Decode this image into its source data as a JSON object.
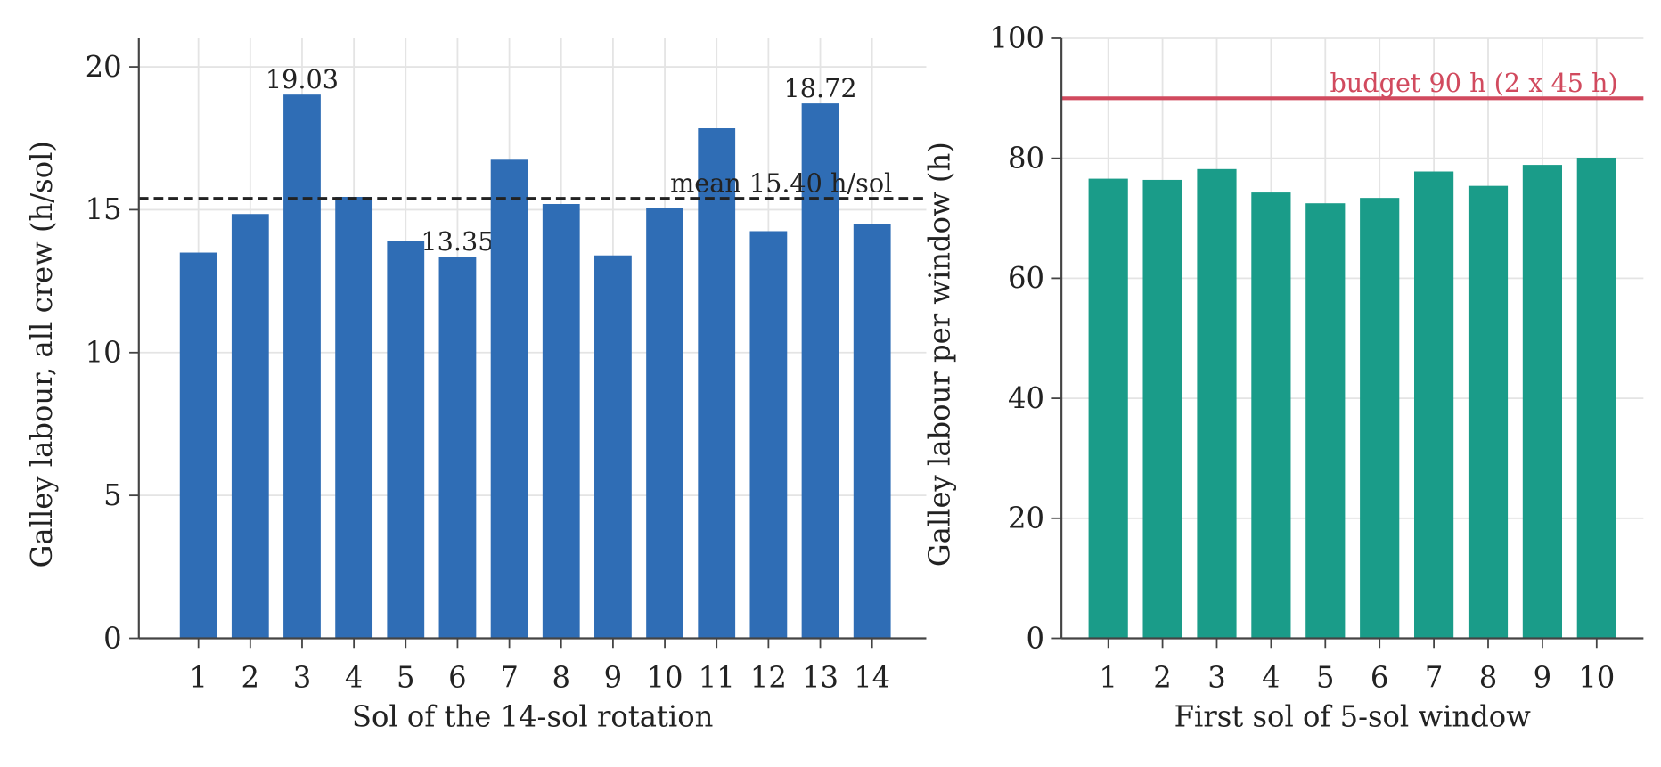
{
  "chart_data": [
    {
      "type": "bar",
      "x_label": "Sol of the 14-sol rotation",
      "y_label": "Galley labour, all crew (h/sol)",
      "categories": [
        "1",
        "2",
        "3",
        "4",
        "5",
        "6",
        "7",
        "8",
        "9",
        "10",
        "11",
        "12",
        "13",
        "14"
      ],
      "values": [
        13.5,
        14.85,
        19.03,
        15.45,
        13.9,
        13.35,
        16.75,
        15.2,
        13.4,
        15.05,
        17.85,
        14.25,
        18.72,
        14.5
      ],
      "value_labels": [
        null,
        null,
        "19.03",
        null,
        null,
        "13.35",
        null,
        null,
        null,
        null,
        null,
        null,
        "18.72",
        null
      ],
      "color": "#2f6db5",
      "ylim": [
        0,
        21
      ],
      "yticks": [
        0,
        5,
        10,
        15,
        20
      ],
      "grid": true,
      "reference_line": {
        "value": 15.4,
        "label": "mean 15.40 h/sol",
        "color": "#222222",
        "style": "dashed"
      }
    },
    {
      "type": "bar",
      "x_label": "First sol of 5-sol window",
      "y_label": "Galley labour per window (h)",
      "categories": [
        "1",
        "2",
        "3",
        "4",
        "5",
        "6",
        "7",
        "8",
        "9",
        "10"
      ],
      "values": [
        76.6,
        76.4,
        78.2,
        74.3,
        72.5,
        73.4,
        77.8,
        75.4,
        78.9,
        80.1
      ],
      "color": "#1a9c89",
      "ylim": [
        0,
        100
      ],
      "yticks": [
        0,
        20,
        40,
        60,
        80,
        100
      ],
      "grid": true,
      "reference_line": {
        "value": 90,
        "label": "budget 90 h (2 x 45 h)",
        "color": "#d14a5e",
        "style": "solid"
      }
    }
  ]
}
